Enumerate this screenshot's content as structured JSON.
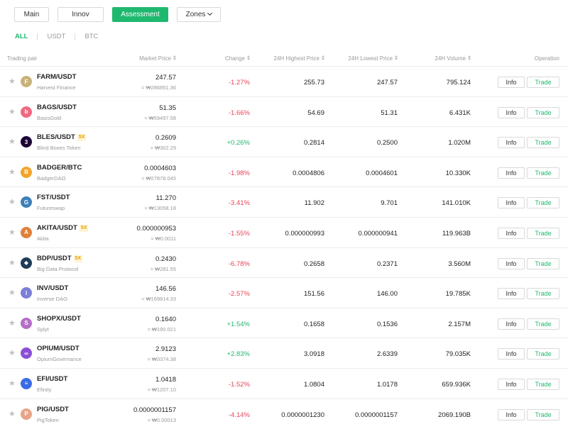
{
  "tabs": [
    {
      "label": "Main",
      "active": false
    },
    {
      "label": "Innov",
      "active": false
    },
    {
      "label": "Assessment",
      "active": true
    },
    {
      "label": "Zones",
      "active": false,
      "dropdown": true
    }
  ],
  "subtabs": [
    {
      "label": "ALL",
      "active": true
    },
    {
      "label": "USDT",
      "active": false
    },
    {
      "label": "BTC",
      "active": false
    }
  ],
  "columns": {
    "pair": "Trading pair",
    "price": "Market Price",
    "change": "Change",
    "high": "24H Highest Price",
    "low": "24H Lowest Price",
    "volume": "24H Volume",
    "operation": "Operation"
  },
  "buttons": {
    "info": "Info",
    "trade": "Trade"
  },
  "colors": {
    "accent": "#1fb86f",
    "negative": "#e94359",
    "positive": "#1fb86f"
  },
  "rows": [
    {
      "pair": "FARM/USDT",
      "badge": "",
      "name": "Harvest Finance",
      "price": "247.57",
      "krw": "≈ ₩286851.36",
      "change": "-1.27%",
      "dir": "neg",
      "high": "255.73",
      "low": "247.57",
      "volume": "795.124",
      "icon": "farm-coin-icon",
      "icon_color": "#c9b27a",
      "icon_glyph": "F"
    },
    {
      "pair": "BAGS/USDT",
      "badge": "",
      "name": "BasisGold",
      "price": "51.35",
      "krw": "≈ ₩59497.58",
      "change": "-1.66%",
      "dir": "neg",
      "high": "54.69",
      "low": "51.31",
      "volume": "6.431K",
      "icon": "bags-coin-icon",
      "icon_color": "#f06a80",
      "icon_glyph": "b"
    },
    {
      "pair": "BLES/USDT",
      "badge": "5X",
      "name": "Blind Boxes Token",
      "price": "0.2609",
      "krw": "≈ ₩302.29",
      "change": "+0.26%",
      "dir": "pos",
      "high": "0.2814",
      "low": "0.2500",
      "volume": "1.020M",
      "icon": "bles-coin-icon",
      "icon_color": "#1a0033",
      "icon_glyph": "3"
    },
    {
      "pair": "BADGER/BTC",
      "badge": "",
      "name": "BadgerDAO",
      "price": "0.0004603",
      "krw": "≈ ₩27878.045",
      "change": "-1.98%",
      "dir": "neg",
      "high": "0.0004806",
      "low": "0.0004601",
      "volume": "10.330K",
      "icon": "badger-coin-icon",
      "icon_color": "#f2a52b",
      "icon_glyph": "B"
    },
    {
      "pair": "FST/USDT",
      "badge": "",
      "name": "Futureswap",
      "price": "11.270",
      "krw": "≈ ₩13058.18",
      "change": "-3.41%",
      "dir": "neg",
      "high": "11.902",
      "low": "9.701",
      "volume": "141.010K",
      "icon": "fst-coin-icon",
      "icon_color": "#3d7fb8",
      "icon_glyph": "G"
    },
    {
      "pair": "AKITA/USDT",
      "badge": "5X",
      "name": "Akita",
      "price": "0.000000953",
      "krw": "≈ ₩0.0011",
      "change": "-1.55%",
      "dir": "neg",
      "high": "0.000000993",
      "low": "0.000000941",
      "volume": "119.963B",
      "icon": "akita-coin-icon",
      "icon_color": "#e0803a",
      "icon_glyph": "A"
    },
    {
      "pair": "BDP/USDT",
      "badge": "5X",
      "name": "Big Data Protocol",
      "price": "0.2430",
      "krw": "≈ ₩281.55",
      "change": "-6.78%",
      "dir": "neg",
      "high": "0.2658",
      "low": "0.2371",
      "volume": "3.560M",
      "icon": "bdp-coin-icon",
      "icon_color": "#1d3c5a",
      "icon_glyph": "◆"
    },
    {
      "pair": "INV/USDT",
      "badge": "",
      "name": "Inverse DAO",
      "price": "146.56",
      "krw": "≈ ₩169814.33",
      "change": "-2.57%",
      "dir": "neg",
      "high": "151.56",
      "low": "146.00",
      "volume": "19.785K",
      "icon": "inv-coin-icon",
      "icon_color": "#7b7fd6",
      "icon_glyph": "I"
    },
    {
      "pair": "SHOPX/USDT",
      "badge": "",
      "name": "Splyt",
      "price": "0.1640",
      "krw": "≈ ₩190.021",
      "change": "+1.54%",
      "dir": "pos",
      "high": "0.1658",
      "low": "0.1536",
      "volume": "2.157M",
      "icon": "shopx-coin-icon",
      "icon_color": "#b46ec8",
      "icon_glyph": "S"
    },
    {
      "pair": "OPIUM/USDT",
      "badge": "",
      "name": "OpiumGovernance",
      "price": "2.9123",
      "krw": "≈ ₩3374.38",
      "change": "+2.83%",
      "dir": "pos",
      "high": "3.0918",
      "low": "2.6339",
      "volume": "79.035K",
      "icon": "opium-coin-icon",
      "icon_color": "#8a4fd6",
      "icon_glyph": "∞"
    },
    {
      "pair": "EFI/USDT",
      "badge": "",
      "name": "Efinity",
      "price": "1.0418",
      "krw": "≈ ₩1207.10",
      "change": "-1.52%",
      "dir": "neg",
      "high": "1.0804",
      "low": "1.0178",
      "volume": "659.936K",
      "icon": "efi-coin-icon",
      "icon_color": "#3b6be8",
      "icon_glyph": "≡"
    },
    {
      "pair": "PIG/USDT",
      "badge": "",
      "name": "PigToken",
      "price": "0.0000001157",
      "krw": "≈ ₩0.00013",
      "change": "-4.14%",
      "dir": "neg",
      "high": "0.0000001230",
      "low": "0.0000001157",
      "volume": "2069.190B",
      "icon": "pig-coin-icon",
      "icon_color": "#e8a488",
      "icon_glyph": "P"
    }
  ]
}
